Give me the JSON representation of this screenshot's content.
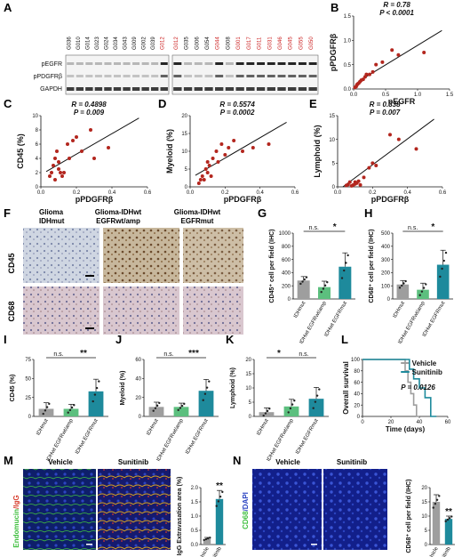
{
  "panels": {
    "A": {
      "label": "A",
      "left_lanes": [
        "G036",
        "G010",
        "G014",
        "G023",
        "G024",
        "G034",
        "G043",
        "G009",
        "G002",
        "G039",
        "G012"
      ],
      "left_red": [
        false,
        false,
        false,
        false,
        false,
        false,
        false,
        false,
        false,
        false,
        true
      ],
      "right_lanes": [
        "G012",
        "G035",
        "G006",
        "G054",
        "G044",
        "G008",
        "G001",
        "G017",
        "G011",
        "G031",
        "G046",
        "G045",
        "G055",
        "G050"
      ],
      "right_red": [
        true,
        false,
        false,
        false,
        true,
        false,
        true,
        true,
        true,
        true,
        true,
        true,
        true,
        true
      ],
      "rows": [
        "pEGFR",
        "pPDGFRβ",
        "GAPDH"
      ]
    },
    "B": {
      "label": "B",
      "r": "R = 0.78",
      "p": "P < 0.0001"
    },
    "C": {
      "label": "C",
      "r": "R = 0.4898",
      "p": "P = 0.009"
    },
    "D": {
      "label": "D",
      "r": "R = 0.5574",
      "p": "P = 0.0002"
    },
    "E": {
      "label": "E",
      "r": "R = 0.338",
      "p": "P = 0.007"
    },
    "F": {
      "label": "F",
      "col_titles": [
        "Glioma\nIDHmut",
        "Glioma-IDHwt\nEGFRwt/amp",
        "Glioma-IDHwt\nEGFRmut"
      ],
      "row_labels": [
        "CD45",
        "CD68"
      ]
    },
    "G": {
      "label": "G"
    },
    "H": {
      "label": "H"
    },
    "I": {
      "label": "I"
    },
    "J": {
      "label": "J"
    },
    "K": {
      "label": "K"
    },
    "L": {
      "label": "L"
    },
    "M": {
      "label": "M",
      "left": "Vehicle",
      "right": "Sunitinib",
      "side_label_a": "Endomucin",
      "side_label_b": "/IgG"
    },
    "N": {
      "label": "N",
      "left": "Vehicle",
      "right": "Sunitinib",
      "side_label_a": "CD68",
      "side_label_b": "/DAPI"
    }
  },
  "chart_data": [
    {
      "id": "B",
      "type": "scatter",
      "xlabel": "pEGFR",
      "ylabel": "pPDGFRβ",
      "xlim": [
        0,
        1.5
      ],
      "ylim": [
        0,
        1.5
      ],
      "xticks": [
        "0.0",
        "0.5",
        "1.0",
        "1.5"
      ],
      "yticks": [
        "0.0",
        "0.5",
        "1.0",
        "1.5"
      ],
      "x": [
        0.02,
        0.04,
        0.05,
        0.06,
        0.08,
        0.1,
        0.12,
        0.15,
        0.18,
        0.2,
        0.25,
        0.3,
        0.35,
        0.45,
        0.6,
        0.7,
        1.1
      ],
      "y": [
        0.03,
        0.05,
        0.08,
        0.1,
        0.12,
        0.15,
        0.18,
        0.2,
        0.25,
        0.3,
        0.3,
        0.35,
        0.5,
        0.55,
        0.8,
        0.7,
        0.75
      ]
    },
    {
      "id": "C",
      "type": "scatter",
      "xlabel": "pPDGFRβ",
      "ylabel": "CD45 (%)",
      "xlim": [
        0,
        0.6
      ],
      "ylim": [
        0,
        10
      ],
      "xticks": [
        "0.0",
        "0.2",
        "0.4",
        "0.6"
      ],
      "yticks": [
        "0",
        "2",
        "4",
        "6",
        "8",
        "10"
      ],
      "x": [
        0.05,
        0.06,
        0.07,
        0.08,
        0.08,
        0.09,
        0.1,
        0.1,
        0.11,
        0.12,
        0.13,
        0.15,
        0.16,
        0.18,
        0.2,
        0.23,
        0.28,
        0.3,
        0.38
      ],
      "y": [
        1.5,
        2,
        3,
        1,
        4,
        5,
        2.5,
        3.5,
        2,
        1.5,
        2,
        6,
        4,
        6.5,
        7,
        5,
        8,
        4,
        5.5
      ]
    },
    {
      "id": "D",
      "type": "scatter",
      "xlabel": "pPDGFRβ",
      "ylabel": "Myeloid (%)",
      "xlim": [
        0,
        0.6
      ],
      "ylim": [
        0,
        20
      ],
      "xticks": [
        "0.0",
        "0.2",
        "0.4",
        "0.6"
      ],
      "yticks": [
        "0",
        "5",
        "10",
        "15",
        "20"
      ],
      "x": [
        0.05,
        0.06,
        0.07,
        0.08,
        0.09,
        0.1,
        0.1,
        0.11,
        0.12,
        0.13,
        0.15,
        0.16,
        0.18,
        0.2,
        0.22,
        0.25,
        0.3,
        0.36,
        0.45
      ],
      "y": [
        1,
        2,
        3,
        2,
        5,
        4,
        7,
        6,
        3,
        8,
        10,
        7,
        12,
        9,
        11,
        13,
        10,
        11,
        12
      ]
    },
    {
      "id": "E",
      "type": "scatter",
      "xlabel": "pPDGFRβ",
      "ylabel": "Lymphoid (%)",
      "xlim": [
        0,
        0.6
      ],
      "ylim": [
        0,
        15
      ],
      "xticks": [
        "0.0",
        "0.2",
        "0.4",
        "0.6"
      ],
      "yticks": [
        "0",
        "5",
        "10",
        "15"
      ],
      "x": [
        0.05,
        0.06,
        0.07,
        0.08,
        0.09,
        0.1,
        0.1,
        0.11,
        0.12,
        0.13,
        0.15,
        0.18,
        0.2,
        0.22,
        0.3,
        0.35,
        0.45
      ],
      "y": [
        0.3,
        0.5,
        1,
        0.2,
        0.4,
        1,
        0.6,
        0.8,
        1.2,
        0.4,
        2,
        4,
        5,
        4.5,
        11,
        10,
        8
      ]
    },
    {
      "id": "G",
      "type": "bar",
      "ylabel": "CD45⁺ cell per field (IHC)",
      "categories": [
        "IDHmut",
        "IDHwt EGFRwt/amp",
        "IDHwt EGFRmut"
      ],
      "values": [
        280,
        180,
        490
      ],
      "errors": [
        60,
        90,
        210
      ],
      "colors": [
        "#9e9e9e",
        "#5cbf7e",
        "#1e8a9c"
      ],
      "ylim": [
        0,
        1000
      ],
      "yticks": [
        "0",
        "200",
        "400",
        "600",
        "800",
        "1000"
      ],
      "sig": [
        "n.s.",
        "*"
      ]
    },
    {
      "id": "H",
      "type": "bar",
      "ylabel": "CD68⁺ cell per field (IHC)",
      "categories": [
        "IDHmut",
        "IDHwt EGFRwt/amp",
        "IDHwt EGFRmut"
      ],
      "values": [
        110,
        70,
        260
      ],
      "errors": [
        30,
        50,
        110
      ],
      "colors": [
        "#9e9e9e",
        "#5cbf7e",
        "#1e8a9c"
      ],
      "ylim": [
        0,
        500
      ],
      "yticks": [
        "0",
        "100",
        "200",
        "300",
        "400",
        "500"
      ],
      "sig": [
        "n.s.",
        "*"
      ]
    },
    {
      "id": "I",
      "type": "bar",
      "ylabel": "CD45 (%)",
      "categories": [
        "IDHmut",
        "IDHwt EGFRwt/amp",
        "IDHwt EGFRmut"
      ],
      "values": [
        10,
        10,
        33
      ],
      "errors": [
        8,
        6,
        16
      ],
      "colors": [
        "#9e9e9e",
        "#5cbf7e",
        "#1e8a9c"
      ],
      "ylim": [
        0,
        75
      ],
      "yticks": [
        "0",
        "25",
        "50",
        "75"
      ],
      "sig": [
        "n.s.",
        "**"
      ]
    },
    {
      "id": "J",
      "type": "bar",
      "ylabel": "Myeloid (%)",
      "categories": [
        "IDHmut",
        "IDHwt EGFRwt/amp",
        "IDHwt EGFRmut"
      ],
      "values": [
        10,
        10,
        27
      ],
      "errors": [
        5,
        4,
        12
      ],
      "colors": [
        "#9e9e9e",
        "#5cbf7e",
        "#1e8a9c"
      ],
      "ylim": [
        0,
        60
      ],
      "yticks": [
        "0",
        "20",
        "40",
        "60"
      ],
      "sig": [
        "n.s.",
        "***"
      ]
    },
    {
      "id": "K",
      "type": "bar",
      "ylabel": "Lymphoid (%)",
      "categories": [
        "IDHmut",
        "IDHwt EGFRwt/amp",
        "IDHwt EGFRmut"
      ],
      "values": [
        1.5,
        3.5,
        6.2
      ],
      "errors": [
        1.5,
        2.5,
        4
      ],
      "colors": [
        "#9e9e9e",
        "#5cbf7e",
        "#1e8a9c"
      ],
      "ylim": [
        0,
        20
      ],
      "yticks": [
        "0",
        "5",
        "10",
        "15",
        "20"
      ],
      "sig": [
        "*",
        "n.s."
      ]
    },
    {
      "id": "L",
      "type": "line",
      "xlabel": "Time (days)",
      "ylabel": "Overall survival",
      "xlim": [
        0,
        60
      ],
      "ylim": [
        0,
        100
      ],
      "xticks": [
        "0",
        "20",
        "40",
        "60"
      ],
      "yticks": [
        "0",
        "20",
        "40",
        "60",
        "80",
        "100"
      ],
      "annotation": "P = 0.0126",
      "series": [
        {
          "name": "Vehicle",
          "color": "#9e9e9e",
          "x": [
            0,
            30,
            30,
            32,
            32,
            34,
            34,
            36,
            36,
            38,
            38,
            40
          ],
          "y": [
            100,
            100,
            80,
            80,
            60,
            60,
            40,
            40,
            20,
            20,
            0,
            0
          ]
        },
        {
          "name": "Sunitinib",
          "color": "#1e8a9c",
          "x": [
            0,
            33,
            33,
            36,
            36,
            40,
            40,
            44,
            44,
            48,
            48,
            52
          ],
          "y": [
            100,
            100,
            83,
            83,
            66,
            66,
            50,
            50,
            33,
            33,
            0,
            0
          ]
        }
      ]
    },
    {
      "id": "M",
      "type": "bar",
      "ylabel": "IgG Extravasation area (%)",
      "categories": [
        "Vehicle",
        "Sunitinib"
      ],
      "values": [
        0.2,
        1.6
      ],
      "errors": [
        0.05,
        0.3
      ],
      "colors": [
        "#9e9e9e",
        "#1e8a9c"
      ],
      "ylim": [
        0,
        2
      ],
      "yticks": [
        "0.0",
        "0.5",
        "1.0",
        "1.5",
        "2.0"
      ],
      "sig": [
        "**"
      ]
    },
    {
      "id": "N",
      "type": "bar",
      "ylabel": "CD68⁺ cell per field (IHC)",
      "categories": [
        "Vehicle",
        "Sunitinib"
      ],
      "values": [
        15,
        9
      ],
      "errors": [
        2.5,
        1
      ],
      "colors": [
        "#9e9e9e",
        "#1e8a9c"
      ],
      "ylim": [
        0,
        20
      ],
      "yticks": [
        "0",
        "5",
        "10",
        "15",
        "20"
      ],
      "sig": [
        "**"
      ]
    }
  ]
}
